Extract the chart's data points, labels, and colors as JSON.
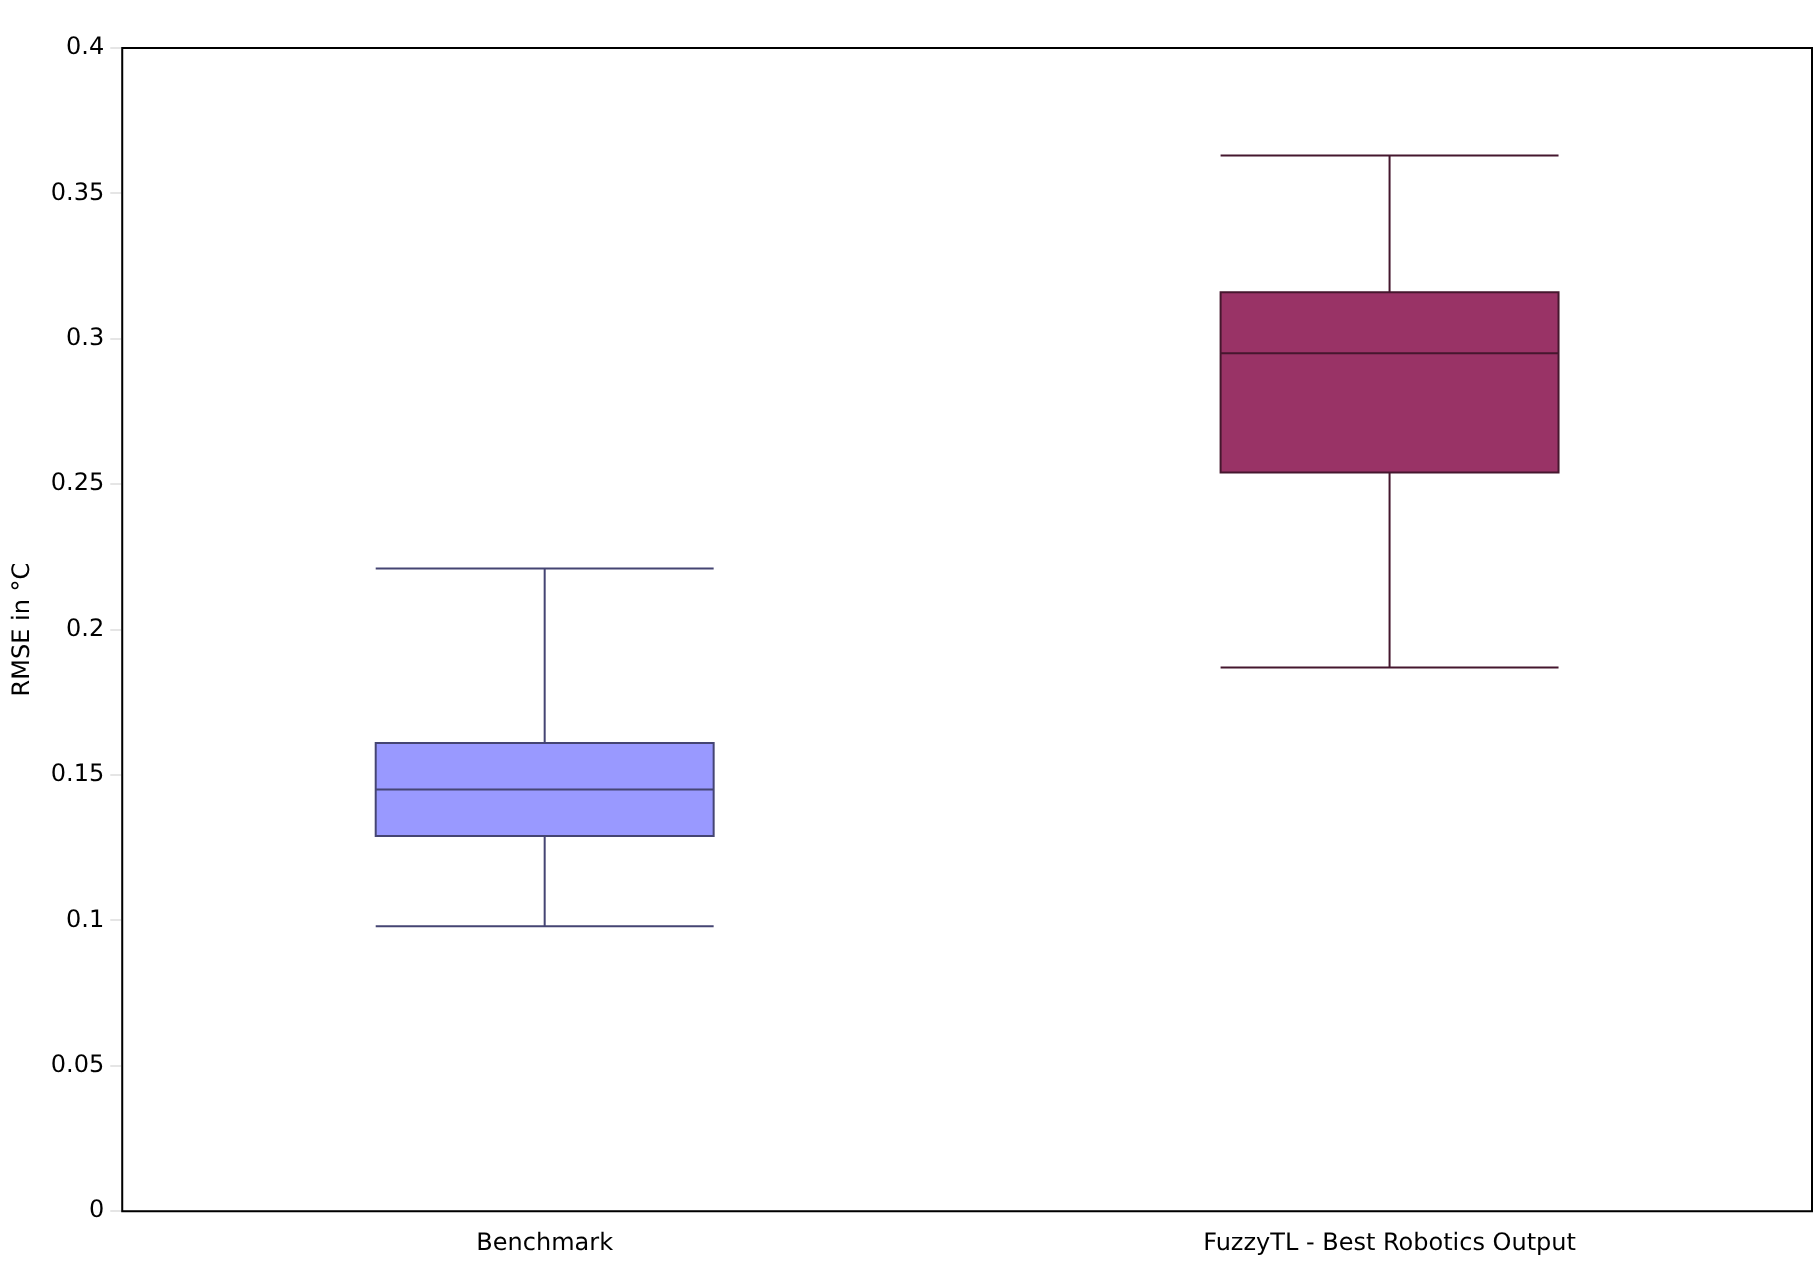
{
  "chart_data": {
    "type": "box",
    "ylabel": "RMSE in °C",
    "categories": [
      "Benchmark",
      "FuzzyTL - Best Robotics Output"
    ],
    "boxes": [
      {
        "low": 0.098,
        "q1": 0.129,
        "median": 0.145,
        "q3": 0.161,
        "high": 0.221
      },
      {
        "low": 0.187,
        "q1": 0.254,
        "median": 0.295,
        "q3": 0.316,
        "high": 0.363
      }
    ],
    "colors": [
      "#9999ff",
      "#993366"
    ],
    "ylim": [
      0,
      0.4
    ],
    "yticks": [
      0,
      0.05,
      0.1,
      0.15,
      0.2,
      0.25,
      0.3,
      0.35,
      0.4
    ],
    "grid": false,
    "legend": false
  }
}
